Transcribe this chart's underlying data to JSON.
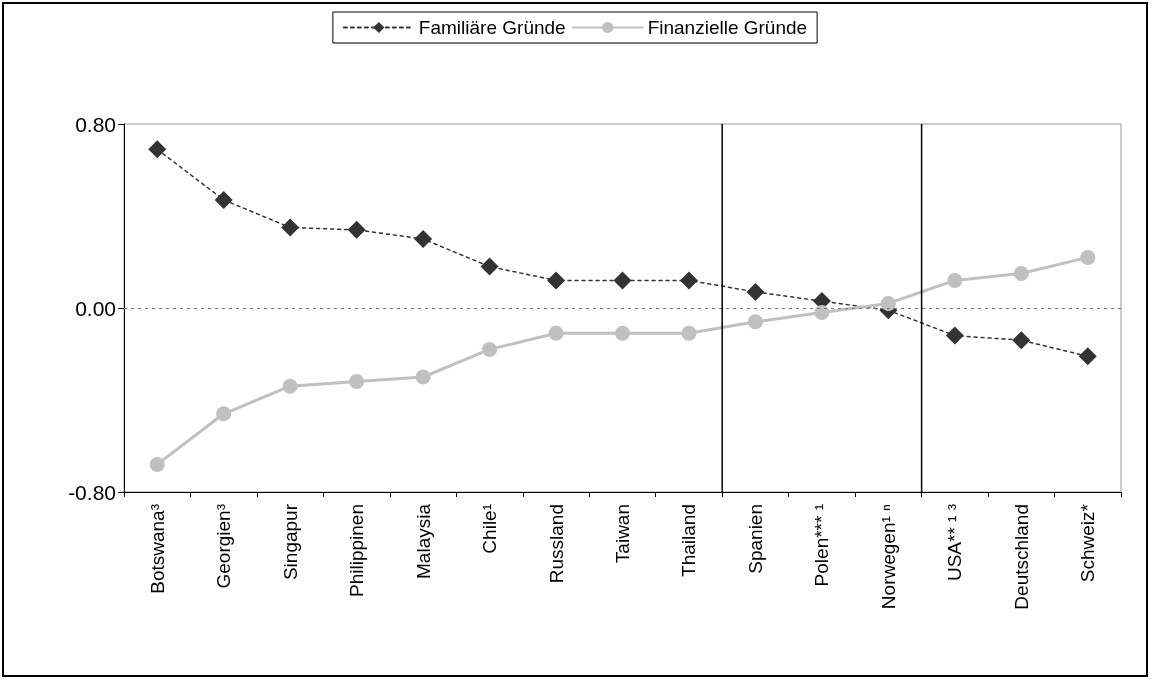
{
  "chart_data": {
    "type": "line",
    "categories": [
      "Botswana³",
      "Georgien³",
      "Singapur",
      "Philippinen",
      "Malaysia",
      "Chile¹",
      "Russland",
      "Taiwan",
      "Thailand",
      "Spanien",
      "Polen*** ¹",
      "Norwegen¹ ⁿ",
      "USA** ¹ ³",
      "Deutschland",
      "Schweiz*"
    ],
    "series": [
      {
        "name": "Familiäre Gründe",
        "color": "#333333",
        "marker": "diamond",
        "line_style": "dotted",
        "values": [
          0.69,
          0.47,
          0.35,
          0.34,
          0.3,
          0.18,
          0.12,
          0.12,
          0.12,
          0.07,
          0.03,
          -0.01,
          -0.12,
          -0.14,
          -0.21
        ]
      },
      {
        "name": "Finanzielle Gründe",
        "color": "#c0c0c0",
        "marker": "circle",
        "line_style": "solid",
        "values": [
          -0.68,
          -0.46,
          -0.34,
          -0.32,
          -0.3,
          -0.18,
          -0.11,
          -0.11,
          -0.11,
          -0.06,
          -0.02,
          0.02,
          0.12,
          0.15,
          0.22
        ]
      }
    ],
    "ylim": [
      -0.8,
      0.8
    ],
    "yticks": [
      {
        "value": -0.8,
        "label": "-0.80"
      },
      {
        "value": 0,
        "label": "0.00"
      },
      {
        "value": 0.8,
        "label": "0.80"
      }
    ],
    "ref_lines": [
      {
        "axis": "y",
        "value": 0,
        "color": "#777777",
        "line_style": "dotted"
      }
    ],
    "grid": false,
    "legend": "top"
  }
}
